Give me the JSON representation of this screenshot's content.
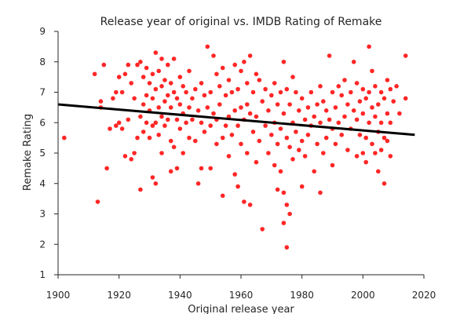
{
  "chart_data": {
    "type": "scatter",
    "title": "Release year of original vs. IMDB Rating of Remake",
    "xlabel": "Original release year",
    "ylabel": "Remake Rating",
    "xlim": [
      1900,
      2020
    ],
    "ylim": [
      1,
      9
    ],
    "x_ticks": [
      "1900",
      "1920",
      "1940",
      "1960",
      "1980",
      "2000",
      "2020"
    ],
    "y_ticks": [
      "1",
      "2",
      "3",
      "4",
      "5",
      "6",
      "7",
      "8",
      "9"
    ],
    "grid": false,
    "point_color": "#ff0000",
    "trend_color": "#000000",
    "trend_line": {
      "x": [
        1900,
        2017
      ],
      "y": [
        6.6,
        5.6
      ]
    },
    "points": [
      [
        1902,
        5.5
      ],
      [
        1912,
        7.6
      ],
      [
        1913,
        3.4
      ],
      [
        1914,
        6.7
      ],
      [
        1914,
        6.5
      ],
      [
        1915,
        7.9
      ],
      [
        1916,
        4.5
      ],
      [
        1917,
        5.8
      ],
      [
        1918,
        6.8
      ],
      [
        1919,
        7.0
      ],
      [
        1919,
        5.9
      ],
      [
        1920,
        7.5
      ],
      [
        1920,
        6.0
      ],
      [
        1921,
        7.0
      ],
      [
        1921,
        5.8
      ],
      [
        1922,
        7.6
      ],
      [
        1922,
        4.9
      ],
      [
        1923,
        7.9
      ],
      [
        1923,
        6.1
      ],
      [
        1924,
        7.3
      ],
      [
        1924,
        4.8
      ],
      [
        1925,
        6.8
      ],
      [
        1925,
        5.0
      ],
      [
        1926,
        7.9
      ],
      [
        1926,
        5.5
      ],
      [
        1927,
        8.0
      ],
      [
        1927,
        3.8
      ],
      [
        1927,
        6.2
      ],
      [
        1928,
        7.5
      ],
      [
        1928,
        5.7
      ],
      [
        1928,
        6.6
      ],
      [
        1929,
        7.8
      ],
      [
        1929,
        6.9
      ],
      [
        1929,
        6.0
      ],
      [
        1930,
        7.3
      ],
      [
        1930,
        6.4
      ],
      [
        1930,
        5.5
      ],
      [
        1931,
        7.6
      ],
      [
        1931,
        6.8
      ],
      [
        1931,
        4.2
      ],
      [
        1931,
        5.9
      ],
      [
        1932,
        8.3
      ],
      [
        1932,
        7.1
      ],
      [
        1932,
        6.0
      ],
      [
        1932,
        4.0
      ],
      [
        1933,
        7.7
      ],
      [
        1933,
        6.5
      ],
      [
        1933,
        5.6
      ],
      [
        1934,
        8.1
      ],
      [
        1934,
        7.2
      ],
      [
        1934,
        6.2
      ],
      [
        1934,
        5.0
      ],
      [
        1935,
        7.4
      ],
      [
        1935,
        6.7
      ],
      [
        1935,
        5.9
      ],
      [
        1936,
        7.9
      ],
      [
        1936,
        6.9
      ],
      [
        1936,
        6.1
      ],
      [
        1937,
        7.3
      ],
      [
        1937,
        5.4
      ],
      [
        1937,
        4.4
      ],
      [
        1937,
        6.5
      ],
      [
        1938,
        8.1
      ],
      [
        1938,
        7.0
      ],
      [
        1938,
        5.2
      ],
      [
        1939,
        6.8
      ],
      [
        1939,
        6.1
      ],
      [
        1939,
        4.5
      ],
      [
        1940,
        7.5
      ],
      [
        1940,
        6.6
      ],
      [
        1940,
        5.8
      ],
      [
        1941,
        7.2
      ],
      [
        1941,
        6.3
      ],
      [
        1941,
        5.0
      ],
      [
        1942,
        7.0
      ],
      [
        1942,
        6.0
      ],
      [
        1943,
        7.7
      ],
      [
        1943,
        6.5
      ],
      [
        1943,
        5.5
      ],
      [
        1944,
        6.8
      ],
      [
        1944,
        6.1
      ],
      [
        1945,
        7.1
      ],
      [
        1945,
        5.4
      ],
      [
        1946,
        6.4
      ],
      [
        1946,
        4.0
      ],
      [
        1947,
        7.3
      ],
      [
        1947,
        6.0
      ],
      [
        1947,
        4.5
      ],
      [
        1948,
        6.9
      ],
      [
        1948,
        5.7
      ],
      [
        1949,
        8.5
      ],
      [
        1949,
        6.5
      ],
      [
        1950,
        7.0
      ],
      [
        1950,
        5.9
      ],
      [
        1950,
        4.5
      ],
      [
        1951,
        8.2
      ],
      [
        1951,
        6.3
      ],
      [
        1952,
        7.6
      ],
      [
        1952,
        6.1
      ],
      [
        1952,
        5.3
      ],
      [
        1953,
        7.2
      ],
      [
        1953,
        6.6
      ],
      [
        1954,
        7.8
      ],
      [
        1954,
        5.5
      ],
      [
        1954,
        3.6
      ],
      [
        1955,
        6.9
      ],
      [
        1955,
        5.9
      ],
      [
        1956,
        7.4
      ],
      [
        1956,
        6.2
      ],
      [
        1956,
        4.9
      ],
      [
        1957,
        7.0
      ],
      [
        1957,
        5.6
      ],
      [
        1958,
        7.9
      ],
      [
        1958,
        6.4
      ],
      [
        1958,
        4.3
      ],
      [
        1959,
        7.1
      ],
      [
        1959,
        5.9
      ],
      [
        1959,
        3.9
      ],
      [
        1960,
        7.7
      ],
      [
        1960,
        6.5
      ],
      [
        1960,
        5.3
      ],
      [
        1961,
        8.0
      ],
      [
        1961,
        6.1
      ],
      [
        1961,
        3.4
      ],
      [
        1962,
        7.3
      ],
      [
        1962,
        6.6
      ],
      [
        1962,
        5.0
      ],
      [
        1963,
        8.2
      ],
      [
        1963,
        6.3
      ],
      [
        1963,
        3.3
      ],
      [
        1964,
        7.0
      ],
      [
        1964,
        5.7
      ],
      [
        1965,
        7.6
      ],
      [
        1965,
        6.2
      ],
      [
        1965,
        4.7
      ],
      [
        1966,
        7.4
      ],
      [
        1966,
        5.4
      ],
      [
        1967,
        6.7
      ],
      [
        1967,
        2.5
      ],
      [
        1968,
        7.1
      ],
      [
        1968,
        5.9
      ],
      [
        1969,
        6.4
      ],
      [
        1969,
        5.0
      ],
      [
        1970,
        6.9
      ],
      [
        1970,
        5.6
      ],
      [
        1971,
        7.3
      ],
      [
        1971,
        6.0
      ],
      [
        1971,
        4.6
      ],
      [
        1972,
        6.6
      ],
      [
        1972,
        5.3
      ],
      [
        1972,
        3.8
      ],
      [
        1973,
        7.0
      ],
      [
        1973,
        5.8
      ],
      [
        1973,
        4.4
      ],
      [
        1974,
        8.0
      ],
      [
        1974,
        6.3
      ],
      [
        1974,
        3.7
      ],
      [
        1974,
        2.7
      ],
      [
        1975,
        7.1
      ],
      [
        1975,
        5.5
      ],
      [
        1975,
        1.9
      ],
      [
        1975,
        3.3
      ],
      [
        1976,
        6.6
      ],
      [
        1976,
        5.2
      ],
      [
        1976,
        3.0
      ],
      [
        1977,
        7.5
      ],
      [
        1977,
        6.0
      ],
      [
        1977,
        4.8
      ],
      [
        1978,
        7.0
      ],
      [
        1978,
        5.7
      ],
      [
        1979,
        6.4
      ],
      [
        1979,
        5.1
      ],
      [
        1980,
        6.8
      ],
      [
        1980,
        5.4
      ],
      [
        1980,
        3.9
      ],
      [
        1981,
        6.1
      ],
      [
        1981,
        4.9
      ],
      [
        1982,
        6.5
      ],
      [
        1982,
        5.6
      ],
      [
        1983,
        7.0
      ],
      [
        1983,
        5.9
      ],
      [
        1984,
        6.2
      ],
      [
        1984,
        4.4
      ],
      [
        1985,
        6.6
      ],
      [
        1985,
        5.3
      ],
      [
        1986,
        7.2
      ],
      [
        1986,
        6.0
      ],
      [
        1986,
        3.7
      ],
      [
        1987,
        6.7
      ],
      [
        1987,
        5.0
      ],
      [
        1988,
        6.4
      ],
      [
        1988,
        5.5
      ],
      [
        1989,
        8.2
      ],
      [
        1989,
        6.1
      ],
      [
        1990,
        7.0
      ],
      [
        1990,
        5.8
      ],
      [
        1990,
        4.6
      ],
      [
        1991,
        6.5
      ],
      [
        1991,
        5.3
      ],
      [
        1992,
        7.2
      ],
      [
        1992,
        6.0
      ],
      [
        1993,
        6.9
      ],
      [
        1993,
        5.6
      ],
      [
        1994,
        7.4
      ],
      [
        1994,
        6.2
      ],
      [
        1995,
        6.6
      ],
      [
        1995,
        5.1
      ],
      [
        1996,
        7.0
      ],
      [
        1996,
        5.8
      ],
      [
        1997,
        8.0
      ],
      [
        1997,
        6.4
      ],
      [
        1998,
        7.3
      ],
      [
        1998,
        6.1
      ],
      [
        1998,
        4.9
      ],
      [
        1999,
        6.7
      ],
      [
        1999,
        5.6
      ],
      [
        2000,
        7.1
      ],
      [
        2000,
        6.3
      ],
      [
        2000,
        5.0
      ],
      [
        2001,
        6.8
      ],
      [
        2001,
        5.5
      ],
      [
        2001,
        4.7
      ],
      [
        2002,
        8.5
      ],
      [
        2002,
        7.0
      ],
      [
        2002,
        6.0
      ],
      [
        2003,
        7.7
      ],
      [
        2003,
        6.5
      ],
      [
        2003,
        5.3
      ],
      [
        2004,
        7.2
      ],
      [
        2004,
        6.2
      ],
      [
        2004,
        5.0
      ],
      [
        2005,
        6.6
      ],
      [
        2005,
        5.7
      ],
      [
        2005,
        4.4
      ],
      [
        2006,
        7.0
      ],
      [
        2006,
        6.0
      ],
      [
        2006,
        5.1
      ],
      [
        2007,
        6.8
      ],
      [
        2007,
        5.5
      ],
      [
        2007,
        4.0
      ],
      [
        2008,
        7.4
      ],
      [
        2008,
        6.3
      ],
      [
        2008,
        5.4
      ],
      [
        2009,
        7.1
      ],
      [
        2009,
        6.0
      ],
      [
        2009,
        4.9
      ],
      [
        2010,
        6.7
      ],
      [
        2011,
        7.2
      ],
      [
        2012,
        6.3
      ],
      [
        2014,
        8.2
      ],
      [
        2014,
        6.8
      ]
    ]
  }
}
